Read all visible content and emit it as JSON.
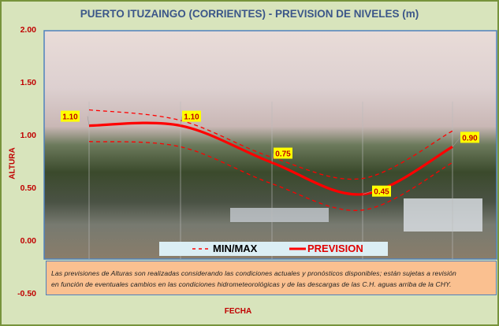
{
  "chart_data": {
    "type": "line",
    "title": "PUERTO ITUZAINGO (CORRIENTES) - PREVISION DE NIVELES (m)",
    "xlabel": "FECHA",
    "ylabel": "ALTURA",
    "ylim": [
      -0.5,
      2.0
    ],
    "yticks": [
      "2.00",
      "1.50",
      "1.00",
      "0.50",
      "0.00",
      "-0.50"
    ],
    "grid": "vertical lines at each forecast point",
    "legend_position": "bottom-center",
    "series": [
      {
        "name": "PREVISION",
        "values": [
          1.1,
          1.1,
          0.75,
          0.45,
          0.9
        ],
        "labels": [
          "1.10",
          "1.10",
          "0.75",
          "0.45",
          "0.90"
        ],
        "color": "#ff0000",
        "style": "solid"
      },
      {
        "name": "MIN/MAX",
        "role": "max",
        "values": [
          1.25,
          1.15,
          0.8,
          0.6,
          1.05
        ],
        "color": "#ff0000",
        "style": "dashed"
      },
      {
        "name": "MIN/MAX",
        "role": "min",
        "values": [
          0.95,
          0.9,
          0.55,
          0.3,
          0.75
        ],
        "color": "#ff0000",
        "style": "dashed"
      }
    ],
    "label_box_color": "#ffff00"
  },
  "legend": {
    "minmax": "MIN/MAX",
    "prevision": "PREVISION"
  },
  "note": {
    "line1": "Las previsiones de Alturas son realizadas considerando las condiciones actuales y pronósticos disponibles;  están sujetas a revisión",
    "line2": "en función de eventuales cambios en las condiciones hidrometeorológicas y de las descargas de las C.H. aguas arriba de la CHY."
  }
}
